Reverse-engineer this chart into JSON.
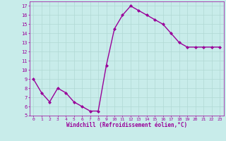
{
  "x": [
    0,
    1,
    2,
    3,
    4,
    5,
    6,
    7,
    8,
    9,
    10,
    11,
    12,
    13,
    14,
    15,
    16,
    17,
    18,
    19,
    20,
    21,
    22,
    23
  ],
  "y": [
    9,
    7.5,
    6.5,
    8,
    7.5,
    6.5,
    6,
    5.5,
    5.5,
    10.5,
    14.5,
    16,
    17,
    16.5,
    16,
    15.5,
    15,
    14,
    13,
    12.5,
    12.5,
    12.5,
    12.5,
    12.5
  ],
  "line_color": "#990099",
  "marker": "D",
  "marker_size": 2,
  "bg_color": "#c8ecea",
  "grid_color": "#b0d8d4",
  "xlabel": "Windchill (Refroidissement éolien,°C)",
  "xlabel_color": "#990099",
  "tick_color": "#990099",
  "ylim": [
    5,
    17.5
  ],
  "xlim": [
    -0.5,
    23.5
  ],
  "yticks": [
    5,
    6,
    7,
    8,
    9,
    10,
    11,
    12,
    13,
    14,
    15,
    16,
    17
  ],
  "xticks": [
    0,
    1,
    2,
    3,
    4,
    5,
    6,
    7,
    8,
    9,
    10,
    11,
    12,
    13,
    14,
    15,
    16,
    17,
    18,
    19,
    20,
    21,
    22,
    23
  ],
  "line_width": 1.0
}
